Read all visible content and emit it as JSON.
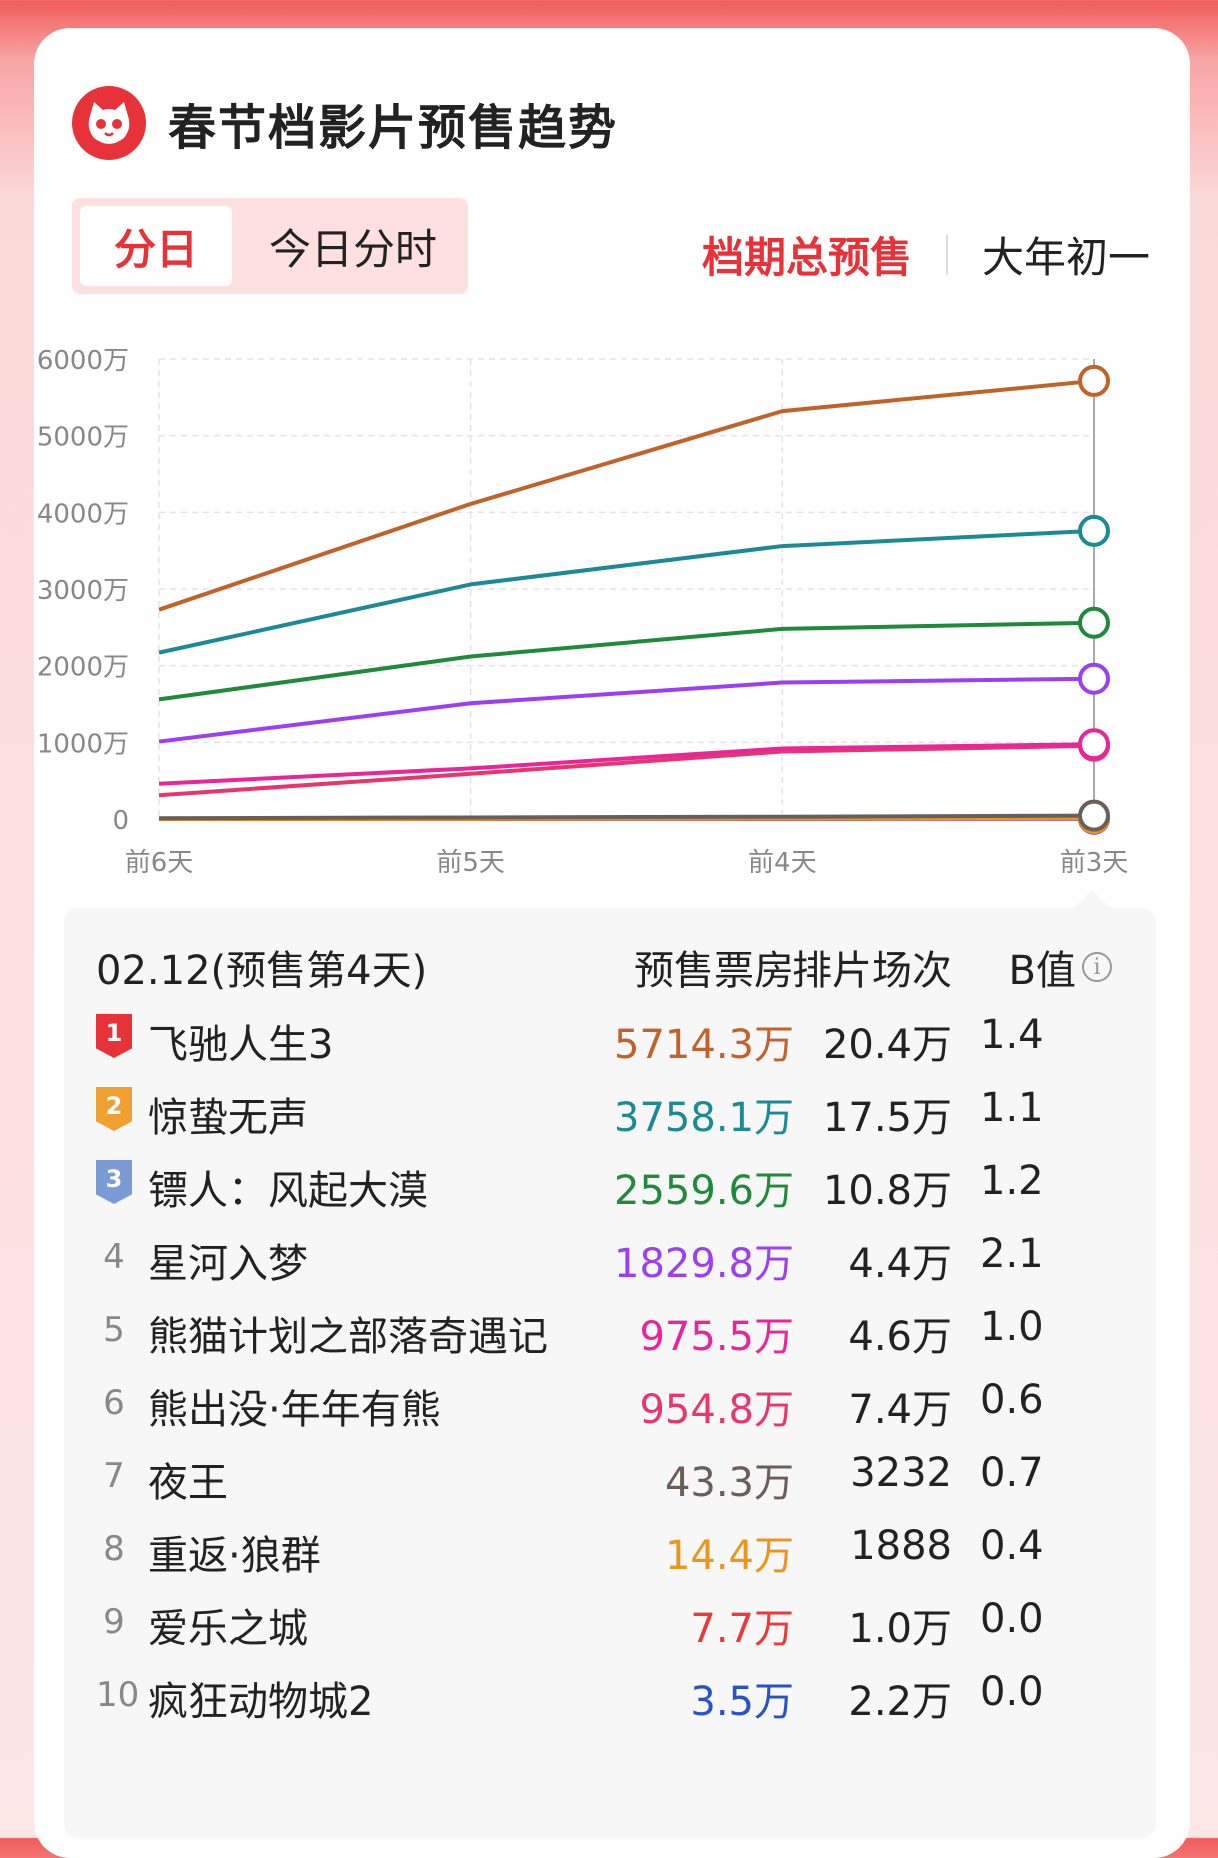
{
  "header": {
    "title": "春节档影片预售趋势"
  },
  "toggle": {
    "active": "分日",
    "inactive": "今日分时"
  },
  "modes": {
    "active": "档期总预售",
    "inactive": "大年初一"
  },
  "colors": {
    "accent": "#e8323a"
  },
  "chart_data": {
    "type": "line",
    "title": "",
    "categories": [
      "前6天",
      "前5天",
      "前4天",
      "前3天"
    ],
    "y_ticks": [
      "0",
      "1000万",
      "2000万",
      "3000万",
      "4000万",
      "5000万",
      "6000万"
    ],
    "ylim": [
      0,
      6000
    ],
    "yunit": "万",
    "grid": true,
    "series": [
      {
        "name": "飞驰人生3",
        "color": "#c0622a",
        "values": [
          2730,
          4110,
          5320,
          5714.3
        ]
      },
      {
        "name": "惊蛰无声",
        "color": "#1b8a94",
        "values": [
          2170,
          3060,
          3560,
          3758.1
        ]
      },
      {
        "name": "镖人：风起大漠",
        "color": "#1f8a3c",
        "values": [
          1560,
          2120,
          2480,
          2559.6
        ]
      },
      {
        "name": "星河入梦",
        "color": "#9b3ff0",
        "values": [
          1010,
          1510,
          1780,
          1829.8
        ]
      },
      {
        "name": "熊猫计划之部落奇遇记",
        "color": "#e8259a",
        "values": [
          460,
          660,
          920,
          975.5
        ]
      },
      {
        "name": "熊出没·年年有熊",
        "color": "#e8356e",
        "values": [
          310,
          590,
          880,
          954.8
        ]
      },
      {
        "name": "夜王",
        "color": "#6b5e58",
        "values": [
          10,
          20,
          30,
          43.3
        ]
      },
      {
        "name": "重返·狼群",
        "color": "#e8961e",
        "values": [
          2,
          4,
          8,
          14.4
        ]
      },
      {
        "name": "爱乐之城",
        "color": "#e83a3a",
        "values": [
          1,
          2,
          4,
          7.7
        ]
      },
      {
        "name": "疯狂动物城2",
        "color": "#2a52c8",
        "values": [
          0.5,
          1,
          2,
          3.5
        ]
      }
    ]
  },
  "table": {
    "date": "02.12(预售第4天)",
    "headers": [
      "预售票房",
      "排片场次",
      "B值"
    ],
    "info_icon": "i",
    "rows": [
      {
        "rank": "1",
        "name": "飞驰人生3",
        "box_office": "5714.3万",
        "screenings": "20.4万",
        "b_value": "1.4",
        "color": "#c0622a",
        "badge_color": "#e8323a"
      },
      {
        "rank": "2",
        "name": "惊蛰无声",
        "box_office": "3758.1万",
        "screenings": "17.5万",
        "b_value": "1.1",
        "color": "#1b8a94",
        "badge_color": "#f0a030"
      },
      {
        "rank": "3",
        "name": "镖人：风起大漠",
        "box_office": "2559.6万",
        "screenings": "10.8万",
        "b_value": "1.2",
        "color": "#1f8a3c",
        "badge_color": "#7b9bd6"
      },
      {
        "rank": "4",
        "name": "星河入梦",
        "box_office": "1829.8万",
        "screenings": "4.4万",
        "b_value": "2.1",
        "color": "#9b3ff0"
      },
      {
        "rank": "5",
        "name": "熊猫计划之部落奇遇记",
        "box_office": "975.5万",
        "screenings": "4.6万",
        "b_value": "1.0",
        "color": "#e8259a"
      },
      {
        "rank": "6",
        "name": "熊出没·年年有熊",
        "box_office": "954.8万",
        "screenings": "7.4万",
        "b_value": "0.6",
        "color": "#e8356e"
      },
      {
        "rank": "7",
        "name": "夜王",
        "box_office": "43.3万",
        "screenings": "3232",
        "b_value": "0.7",
        "color": "#6b5e58"
      },
      {
        "rank": "8",
        "name": "重返·狼群",
        "box_office": "14.4万",
        "screenings": "1888",
        "b_value": "0.4",
        "color": "#e8961e"
      },
      {
        "rank": "9",
        "name": "爱乐之城",
        "box_office": "7.7万",
        "screenings": "1.0万",
        "b_value": "0.0",
        "color": "#e83a3a"
      },
      {
        "rank": "10",
        "name": "疯狂动物城2",
        "box_office": "3.5万",
        "screenings": "2.2万",
        "b_value": "0.0",
        "color": "#2a52c8"
      }
    ]
  }
}
